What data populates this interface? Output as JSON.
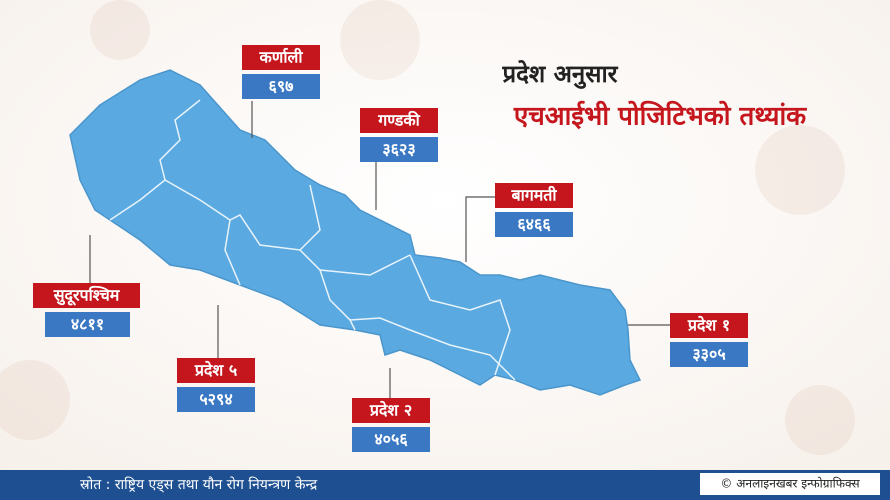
{
  "title": "प्रदेश अनुसार",
  "subtitle": "एचआईभी पोजिटिभको तथ्यांक",
  "provinces": [
    {
      "name": "कर्णाली",
      "value": "६९७"
    },
    {
      "name": "गण्डकी",
      "value": "३६२३"
    },
    {
      "name": "बागमती",
      "value": "६४६६"
    },
    {
      "name": "सुदूरपश्चिम",
      "value": "४८११"
    },
    {
      "name": "प्रदेश ५",
      "value": "५२९४"
    },
    {
      "name": "प्रदेश २",
      "value": "४०५६"
    },
    {
      "name": "प्रदेश १",
      "value": "३३०५"
    }
  ],
  "footer": {
    "source": "स्रोत : राष्ट्रिय एड्स तथा यौन रोग नियन्त्रण केन्द्र",
    "credit": "© अनलाइनखबर इन्फोग्राफिक्स"
  }
}
